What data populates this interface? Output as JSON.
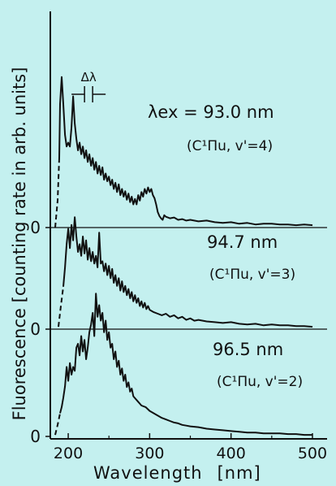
{
  "chart_data": {
    "type": "line",
    "title": "",
    "xlabel": "Wavelength",
    "xunit": "[nm]",
    "ylabel": "Fluorescence [counting rate in arb. units]",
    "xlim": [
      178,
      510
    ],
    "xticks": [
      200,
      300,
      400,
      500
    ],
    "yticks": [
      "0",
      "0",
      "0"
    ],
    "resolution_label": "Δλ",
    "series": [
      {
        "name": "λex = 93.0 nm",
        "label_main": "λex = 93.0 nm",
        "label_state": "(C¹Πu, v'=4)",
        "offset_index": 2,
        "dashed_start": [
          [
            184,
            0
          ],
          [
            187,
            0.35
          ],
          [
            189,
            0.9
          ]
        ],
        "x": [
          189,
          190,
          192,
          194,
          196,
          198,
          200,
          202,
          204,
          206,
          208,
          210,
          212,
          214,
          216,
          218,
          220,
          222,
          224,
          226,
          228,
          230,
          232,
          234,
          236,
          238,
          240,
          242,
          244,
          246,
          248,
          250,
          252,
          254,
          256,
          258,
          260,
          262,
          264,
          266,
          268,
          270,
          272,
          274,
          276,
          278,
          280,
          282,
          284,
          286,
          288,
          290,
          292,
          294,
          296,
          298,
          300,
          302,
          304,
          306,
          308,
          310,
          312,
          314,
          316,
          318,
          320,
          325,
          330,
          335,
          340,
          345,
          350,
          360,
          370,
          380,
          390,
          400,
          410,
          420,
          430,
          440,
          450,
          460,
          470,
          480,
          490,
          500
        ],
        "y": [
          0.9,
          1.6,
          1.95,
          1.6,
          1.2,
          1.05,
          1.1,
          1.05,
          1.3,
          1.7,
          1.35,
          1.15,
          1.0,
          1.1,
          0.95,
          1.05,
          0.9,
          1.0,
          0.85,
          0.95,
          0.8,
          0.9,
          0.75,
          0.85,
          0.7,
          0.8,
          0.68,
          0.78,
          0.62,
          0.7,
          0.6,
          0.66,
          0.55,
          0.62,
          0.5,
          0.58,
          0.46,
          0.56,
          0.42,
          0.5,
          0.4,
          0.47,
          0.36,
          0.44,
          0.33,
          0.4,
          0.3,
          0.37,
          0.3,
          0.42,
          0.35,
          0.46,
          0.4,
          0.5,
          0.44,
          0.52,
          0.46,
          0.5,
          0.42,
          0.38,
          0.3,
          0.2,
          0.15,
          0.12,
          0.1,
          0.16,
          0.14,
          0.12,
          0.13,
          0.1,
          0.11,
          0.09,
          0.1,
          0.08,
          0.09,
          0.07,
          0.06,
          0.07,
          0.05,
          0.06,
          0.04,
          0.05,
          0.05,
          0.04,
          0.04,
          0.03,
          0.04,
          0.03
        ]
      },
      {
        "name": "94.7 nm",
        "label_main": "94.7 nm",
        "label_state": "(C¹Πu, v'=3)",
        "offset_index": 1,
        "dashed_start": [
          [
            188,
            0.03
          ],
          [
            191,
            0.3
          ],
          [
            194,
            0.55
          ]
        ],
        "x": [
          194,
          196,
          198,
          200,
          202,
          204,
          206,
          208,
          210,
          212,
          214,
          216,
          218,
          220,
          222,
          224,
          226,
          228,
          230,
          232,
          234,
          236,
          238,
          240,
          242,
          244,
          246,
          248,
          250,
          252,
          254,
          256,
          258,
          260,
          262,
          264,
          266,
          268,
          270,
          272,
          274,
          276,
          278,
          280,
          282,
          284,
          286,
          288,
          290,
          292,
          294,
          296,
          298,
          300,
          305,
          310,
          315,
          320,
          325,
          330,
          335,
          340,
          345,
          350,
          355,
          360,
          370,
          380,
          390,
          400,
          410,
          420,
          430,
          440,
          450,
          460,
          470,
          480,
          490,
          500
        ],
        "y": [
          0.55,
          0.8,
          1.1,
          1.3,
          1.05,
          1.35,
          1.15,
          1.45,
          1.2,
          1.0,
          1.1,
          0.95,
          1.2,
          0.98,
          1.15,
          0.9,
          1.05,
          0.88,
          1.0,
          0.85,
          0.95,
          0.8,
          1.25,
          0.85,
          0.88,
          0.75,
          0.85,
          0.7,
          0.82,
          0.66,
          0.78,
          0.6,
          0.7,
          0.56,
          0.66,
          0.5,
          0.62,
          0.48,
          0.56,
          0.44,
          0.52,
          0.4,
          0.48,
          0.36,
          0.44,
          0.34,
          0.4,
          0.3,
          0.36,
          0.28,
          0.34,
          0.26,
          0.3,
          0.25,
          0.22,
          0.2,
          0.18,
          0.2,
          0.16,
          0.18,
          0.14,
          0.16,
          0.12,
          0.14,
          0.11,
          0.12,
          0.1,
          0.09,
          0.08,
          0.09,
          0.07,
          0.06,
          0.07,
          0.05,
          0.06,
          0.05,
          0.05,
          0.04,
          0.04,
          0.03
        ]
      },
      {
        "name": "96.5 nm",
        "label_main": "96.5 nm",
        "label_state": "(C¹Πu, v'=2)",
        "offset_index": 0,
        "dashed_start": [
          [
            184,
            0.02
          ],
          [
            187,
            0.15
          ],
          [
            190,
            0.3
          ]
        ],
        "x": [
          190,
          192,
          194,
          196,
          198,
          200,
          202,
          204,
          206,
          208,
          210,
          212,
          214,
          216,
          218,
          220,
          222,
          224,
          226,
          228,
          230,
          232,
          234,
          236,
          238,
          240,
          242,
          244,
          246,
          248,
          250,
          252,
          254,
          256,
          258,
          260,
          262,
          264,
          266,
          268,
          270,
          272,
          274,
          276,
          278,
          280,
          285,
          290,
          295,
          300,
          305,
          310,
          315,
          320,
          325,
          330,
          335,
          340,
          345,
          350,
          360,
          370,
          380,
          390,
          400,
          410,
          420,
          430,
          440,
          450,
          460,
          470,
          480,
          490,
          500
        ],
        "y": [
          0.3,
          0.38,
          0.5,
          0.65,
          0.9,
          0.72,
          0.95,
          0.8,
          0.9,
          0.85,
          1.15,
          1.2,
          1.05,
          1.3,
          1.1,
          1.25,
          1.0,
          1.15,
          1.35,
          1.45,
          1.6,
          1.3,
          1.85,
          1.55,
          1.7,
          1.5,
          1.6,
          1.35,
          1.5,
          1.25,
          1.35,
          1.15,
          1.2,
          1.0,
          1.1,
          0.9,
          0.98,
          0.8,
          0.88,
          0.72,
          0.8,
          0.64,
          0.7,
          0.58,
          0.62,
          0.52,
          0.46,
          0.4,
          0.38,
          0.33,
          0.3,
          0.27,
          0.24,
          0.22,
          0.2,
          0.18,
          0.17,
          0.15,
          0.14,
          0.13,
          0.12,
          0.1,
          0.09,
          0.08,
          0.07,
          0.06,
          0.05,
          0.05,
          0.04,
          0.04,
          0.04,
          0.03,
          0.03,
          0.02,
          0.02
        ]
      }
    ]
  }
}
